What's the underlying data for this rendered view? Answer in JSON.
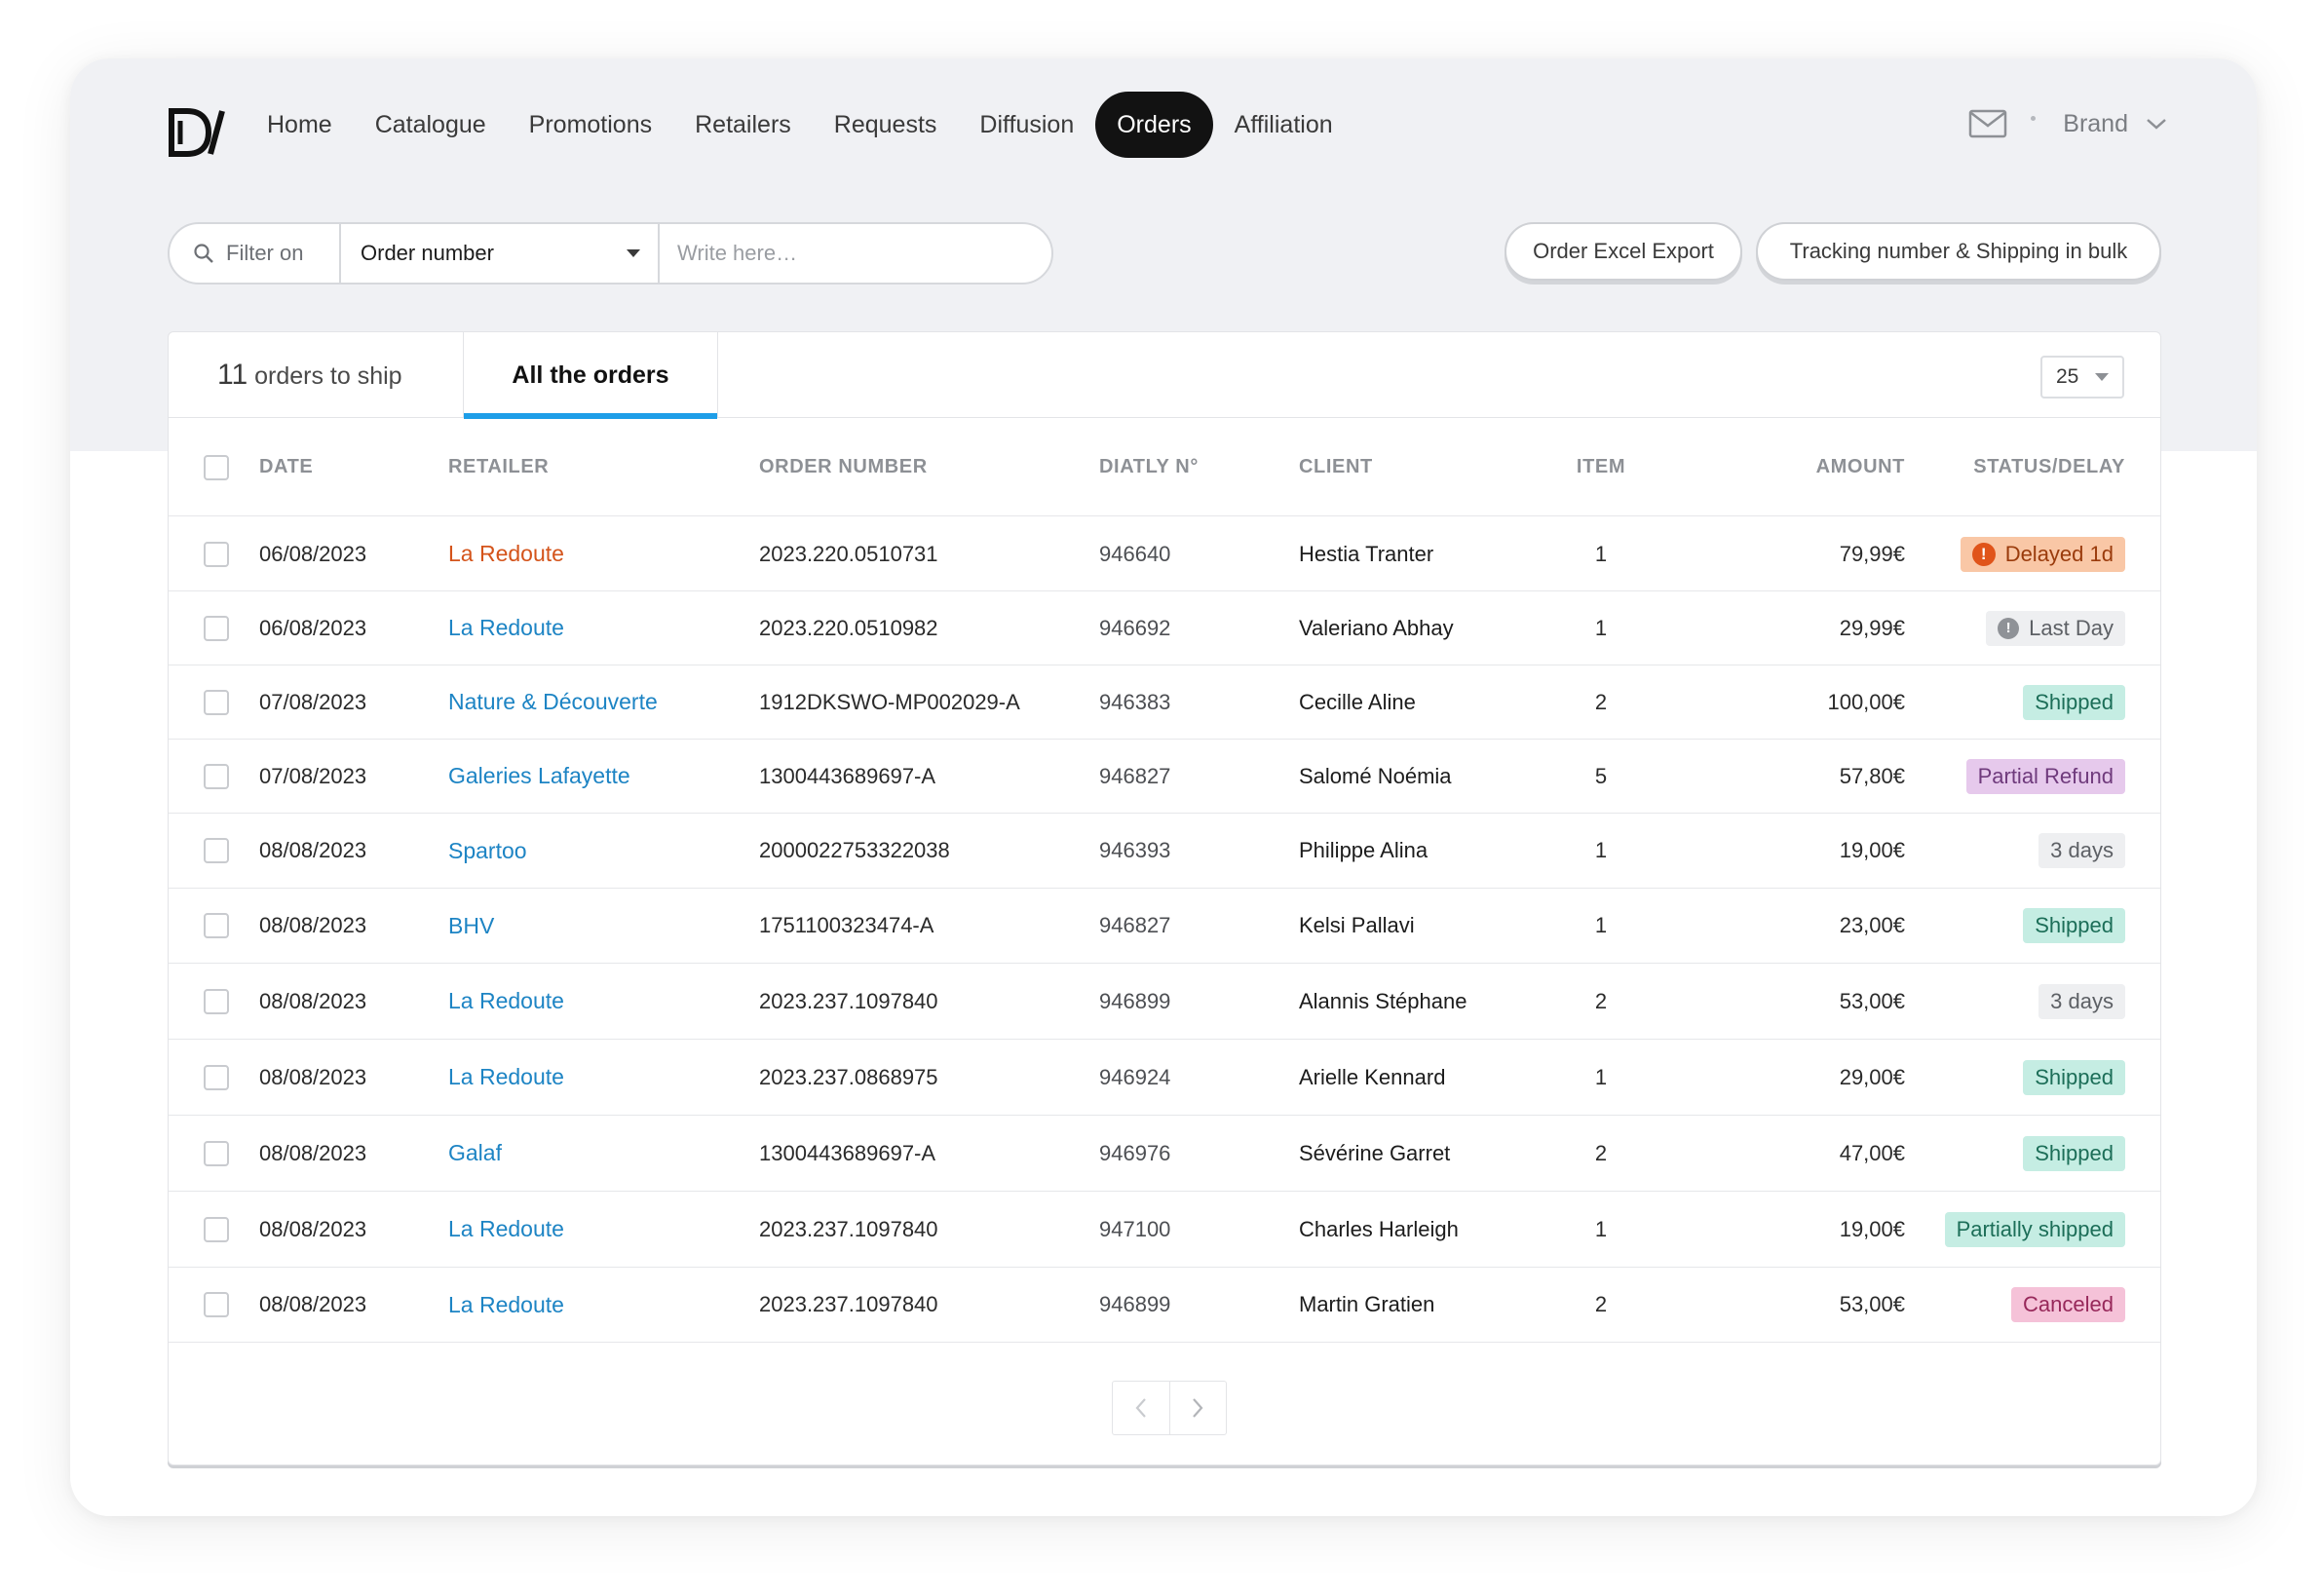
{
  "nav": {
    "items": [
      {
        "label": "Home",
        "active": false
      },
      {
        "label": "Catalogue",
        "active": false
      },
      {
        "label": "Promotions",
        "active": false
      },
      {
        "label": "Retailers",
        "active": false
      },
      {
        "label": "Requests",
        "active": false
      },
      {
        "label": "Diffusion",
        "active": false
      },
      {
        "label": "Orders",
        "active": true
      },
      {
        "label": "Affiliation",
        "active": false
      }
    ],
    "account_label": "Brand"
  },
  "filter": {
    "label": "Filter on",
    "field": "Order number",
    "placeholder": "Write here…"
  },
  "actions": {
    "export_label": "Order Excel Export",
    "bulk_label": "Tracking number & Shipping in bulk"
  },
  "tabs": {
    "to_ship_count": "11",
    "to_ship_label": "orders to ship",
    "all_label": "All the orders"
  },
  "page_size": "25",
  "table": {
    "headers": {
      "date": "DATE",
      "retailer": "RETAILER",
      "order_number": "ORDER NUMBER",
      "diatly": "DIATLY N°",
      "client": "CLIENT",
      "item": "ITEM",
      "amount": "AMOUNT",
      "status": "STATUS/DELAY"
    },
    "rows": [
      {
        "date": "06/08/2023",
        "retailer": "La Redoute",
        "retailer_alert": true,
        "order_number": "2023.220.0510731",
        "diatly": "946640",
        "client": "Hestia Tranter",
        "item": "1",
        "amount": "79,99€",
        "status": "Delayed 1d",
        "status_type": "delayed"
      },
      {
        "date": "06/08/2023",
        "retailer": "La Redoute",
        "retailer_alert": false,
        "order_number": "2023.220.0510982",
        "diatly": "946692",
        "client": "Valeriano Abhay",
        "item": "1",
        "amount": "29,99€",
        "status": "Last Day",
        "status_type": "lastday"
      },
      {
        "date": "07/08/2023",
        "retailer": "Nature & Découverte",
        "retailer_alert": false,
        "order_number": "1912DKSWO-MP002029-A",
        "diatly": "946383",
        "client": "Cecille Aline",
        "item": "2",
        "amount": "100,00€",
        "status": "Shipped",
        "status_type": "shipped"
      },
      {
        "date": "07/08/2023",
        "retailer": "Galeries Lafayette",
        "retailer_alert": false,
        "order_number": "1300443689697-A",
        "diatly": "946827",
        "client": "Salomé Noémia",
        "item": "5",
        "amount": "57,80€",
        "status": "Partial Refund",
        "status_type": "partial-refund"
      },
      {
        "date": "08/08/2023",
        "retailer": "Spartoo",
        "retailer_alert": false,
        "order_number": "2000022753322038",
        "diatly": "946393",
        "client": "Philippe Alina",
        "item": "1",
        "amount": "19,00€",
        "status": "3 days",
        "status_type": "days"
      },
      {
        "date": "08/08/2023",
        "retailer": "BHV",
        "retailer_alert": false,
        "order_number": "1751100323474-A",
        "diatly": "946827",
        "client": "Kelsi Pallavi",
        "item": "1",
        "amount": "23,00€",
        "status": "Shipped",
        "status_type": "shipped"
      },
      {
        "date": "08/08/2023",
        "retailer": "La Redoute",
        "retailer_alert": false,
        "order_number": "2023.237.1097840",
        "diatly": "946899",
        "client": "Alannis Stéphane",
        "item": "2",
        "amount": "53,00€",
        "status": "3 days",
        "status_type": "days"
      },
      {
        "date": "08/08/2023",
        "retailer": "La Redoute",
        "retailer_alert": false,
        "order_number": "2023.237.0868975",
        "diatly": "946924",
        "client": "Arielle Kennard",
        "item": "1",
        "amount": "29,00€",
        "status": "Shipped",
        "status_type": "shipped"
      },
      {
        "date": "08/08/2023",
        "retailer": "Galaf",
        "retailer_alert": false,
        "order_number": "1300443689697-A",
        "diatly": "946976",
        "client": "Sévérine Garret",
        "item": "2",
        "amount": "47,00€",
        "status": "Shipped",
        "status_type": "shipped"
      },
      {
        "date": "08/08/2023",
        "retailer": "La Redoute",
        "retailer_alert": false,
        "order_number": "2023.237.1097840",
        "diatly": "947100",
        "client": "Charles Harleigh",
        "item": "1",
        "amount": "19,00€",
        "status": "Partially shipped",
        "status_type": "partial-shipped"
      },
      {
        "date": "08/08/2023",
        "retailer": "La Redoute",
        "retailer_alert": false,
        "order_number": "2023.237.1097840",
        "diatly": "946899",
        "client": "Martin Gratien",
        "item": "2",
        "amount": "53,00€",
        "status": "Canceled",
        "status_type": "canceled"
      }
    ]
  },
  "colors": {
    "accent": "#1e9ee8",
    "link": "#1d84c4",
    "alert": "#d4541b",
    "nav_active_bg": "#121212"
  }
}
